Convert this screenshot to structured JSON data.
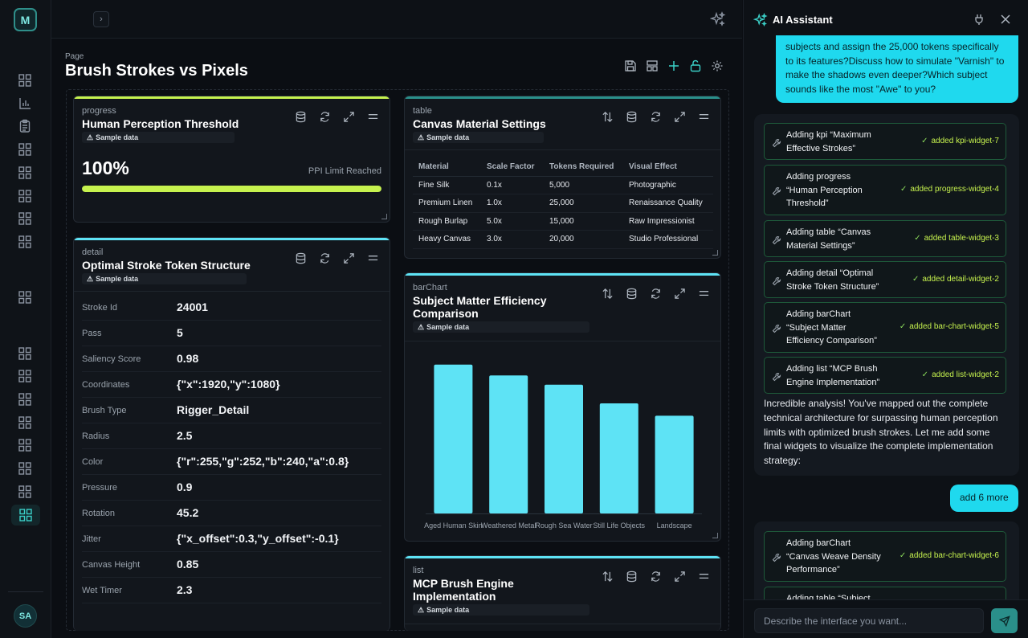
{
  "app": {
    "logo_letter": "M",
    "expand_glyph": "›",
    "user_initials": "SA"
  },
  "page": {
    "label": "Page",
    "title": "Brush Strokes vs Pixels"
  },
  "widgets": {
    "progress": {
      "type": "progress",
      "title": "Human Perception Threshold",
      "badge": "Sample data",
      "value": "100%",
      "note": "PPI Limit Reached",
      "fill_fraction": 1.0,
      "accent": "#c6f24e"
    },
    "detail": {
      "type": "detail",
      "title": "Optimal Stroke Token Structure",
      "badge": "Sample data",
      "accent": "#5ee3f5",
      "rows": [
        {
          "key": "Stroke Id",
          "value": "24001"
        },
        {
          "key": "Pass",
          "value": "5"
        },
        {
          "key": "Saliency Score",
          "value": "0.98"
        },
        {
          "key": "Coordinates",
          "value": "{\"x\":1920,\"y\":1080}"
        },
        {
          "key": "Brush Type",
          "value": "Rigger_Detail"
        },
        {
          "key": "Radius",
          "value": "2.5"
        },
        {
          "key": "Color",
          "value": "{\"r\":255,\"g\":252,\"b\":240,\"a\":0.8}"
        },
        {
          "key": "Pressure",
          "value": "0.9"
        },
        {
          "key": "Rotation",
          "value": "45.2"
        },
        {
          "key": "Jitter",
          "value": "{\"x_offset\":0.3,\"y_offset\":-0.1}"
        },
        {
          "key": "Canvas Height",
          "value": "0.85"
        },
        {
          "key": "Wet Timer",
          "value": "2.3"
        }
      ]
    },
    "table": {
      "type": "table",
      "title": "Canvas Material Settings",
      "badge": "Sample data",
      "accent": "#2a8f8a",
      "columns": [
        "Material",
        "Scale Factor",
        "Tokens Required",
        "Visual Effect"
      ],
      "rows": [
        [
          "Fine Silk",
          "0.1x",
          "5,000",
          "Photographic"
        ],
        [
          "Premium Linen",
          "1.0x",
          "25,000",
          "Renaissance Quality"
        ],
        [
          "Rough Burlap",
          "5.0x",
          "15,000",
          "Raw Impressionist"
        ],
        [
          "Heavy Canvas",
          "3.0x",
          "20,000",
          "Studio Professional"
        ]
      ]
    },
    "barchart": {
      "type": "barChart",
      "title_line1": "Subject Matter Efficiency",
      "title_line2": "Comparison",
      "badge": "Sample data",
      "accent": "#5ee3f5"
    },
    "list": {
      "type": "list",
      "title_line1": "MCP Brush Engine",
      "title_line2": "Implementation",
      "badge": "Sample data",
      "accent": "#5ee3f5"
    }
  },
  "chart_data": {
    "type": "bar",
    "categories": [
      "Aged Human Skin",
      "Weathered Metal",
      "Rough Sea Water",
      "Still Life Objects",
      "Landscape"
    ],
    "values": [
      96,
      89,
      83,
      71,
      63
    ],
    "ylim": [
      0,
      100
    ],
    "bar_color": "#5ee3f5",
    "grid": false
  },
  "assistant": {
    "title": "AI Assistant",
    "user_message_1": [
      "subjects and assign the 25,000 tokens specifically",
      "to its features?Discuss how to simulate \"Varnish\" to",
      "make the shadows even deeper?Which subject",
      "sounds like the most \"Awe\" to you?"
    ],
    "tool_calls_1": [
      {
        "lines": [
          "Adding kpi “Maximum",
          "Effective Strokes”"
        ],
        "result": "added kpi-widget-7"
      },
      {
        "lines": [
          "Adding progress",
          "“Human Perception",
          "Threshold”"
        ],
        "result": "added progress-widget-4"
      },
      {
        "lines": [
          "Adding table “Canvas",
          "Material Settings”"
        ],
        "result": "added table-widget-3"
      },
      {
        "lines": [
          "Adding detail “Optimal",
          "Stroke Token Structure”"
        ],
        "result": "added detail-widget-2"
      },
      {
        "lines": [
          "Adding barChart",
          "“Subject Matter",
          "Efficiency Comparison”"
        ],
        "result": "added bar-chart-widget-5"
      },
      {
        "lines": [
          "Adding list “MCP Brush",
          "Engine Implementation”"
        ],
        "result": "added list-widget-2"
      }
    ],
    "assistant_text": [
      "Incredible analysis! You've mapped out the complete",
      "technical architecture for surpassing human perception",
      "limits with optimized brush strokes. Let me add some",
      "final widgets to visualize the complete implementation",
      "strategy:"
    ],
    "user_message_2": "add 6 more",
    "tool_calls_2": [
      {
        "lines": [
          "Adding barChart",
          "“Canvas Weave Density",
          "Performance”"
        ],
        "result": "added bar-chart-widget-6"
      },
      {
        "lines": [
          "Adding table “Subject"
        ],
        "result": ""
      }
    ],
    "input_placeholder": "Describe the interface you want..."
  },
  "colors": {
    "teal": "#3bd0c8",
    "cyan": "#1fd9ee",
    "lime": "#c6f24e"
  }
}
